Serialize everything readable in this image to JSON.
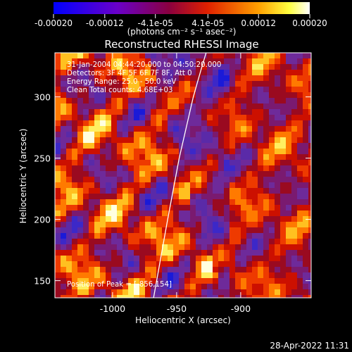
{
  "colorbar": {
    "ticks": [
      "-0.00020",
      "-0.00012",
      "-4.1e-05",
      "4.1e-05",
      "0.00012",
      "0.00020"
    ],
    "tick_values": [
      -0.0002,
      -0.00012,
      -4.1e-05,
      4.1e-05,
      0.00012,
      0.0002
    ],
    "range": [
      -0.0002,
      0.0002
    ],
    "units": "(photons cm⁻² s⁻¹ asec⁻²)",
    "colors": [
      "#0000ff",
      "#7a00b0",
      "#b00020",
      "#ff4000",
      "#ffff40",
      "#ffffff"
    ]
  },
  "chart_data": {
    "type": "heatmap",
    "title": "Reconstructed RHESSI Image",
    "xlabel": "Heliocentric X (arcsec)",
    "ylabel": "Heliocentric Y (arcsec)",
    "xlim": [
      -1045,
      -845
    ],
    "ylim": [
      136,
      336
    ],
    "xticks": [
      -1000,
      -950,
      -900
    ],
    "yticks": [
      150,
      200,
      250,
      300
    ],
    "limb_line": [
      [
        -968,
        136
      ],
      [
        -957,
        200
      ],
      [
        -948,
        250
      ],
      [
        -937,
        300
      ],
      [
        -931,
        322
      ],
      [
        -927,
        336
      ]
    ],
    "annotations": [
      "31-Jan-2004 04:44:20.000 to 04:50:20.000",
      "Detectors: 3F 4F 5F 6F 7F 8F, Att 0",
      "Energy Range: 25.0 - 50.0 keV",
      "Clean    Total counts: 4.68E+03"
    ],
    "peak_label": "Position of Peak = [-856,154]",
    "peak": [
      -856,
      154
    ]
  },
  "footer": {
    "date": "28-Apr-2022 11:31"
  }
}
